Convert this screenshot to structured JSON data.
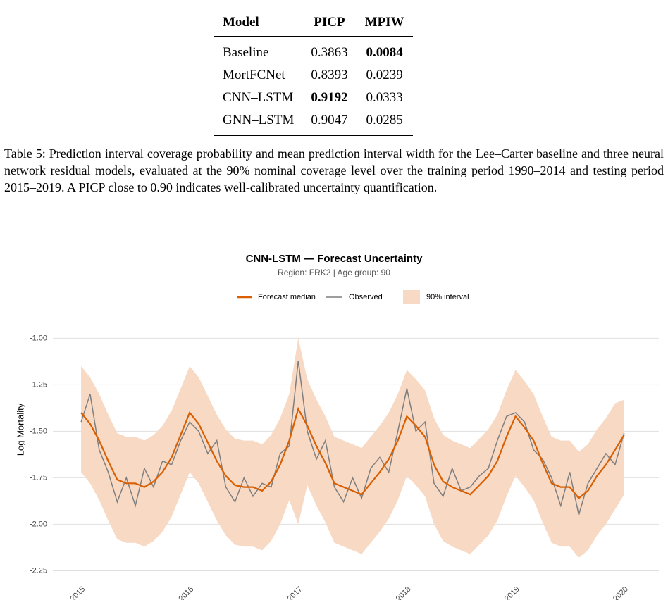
{
  "table": {
    "header": [
      "Model",
      "PICP",
      "MPIW"
    ],
    "rows": [
      [
        "Baseline",
        "0.3863",
        "0.0084"
      ],
      [
        "MortFCNet",
        "0.8393",
        "0.0239"
      ],
      [
        "CNN–LSTM",
        "0.9192",
        "0.0333"
      ],
      [
        "GNN–LSTM",
        "0.9047",
        "0.0285"
      ]
    ],
    "bold": [
      [
        0,
        2
      ],
      [
        2,
        1
      ]
    ]
  },
  "caption": "Table 5: Prediction interval coverage probability and mean prediction interval width for the Lee–Carter baseline and three neural network residual models, evaluated at the 90% nominal coverage level over the training period 1990–2014 and testing period 2015–2019. A PICP close to 0.90 indicates well-calibrated uncertainty quantification.",
  "chart_data": {
    "type": "line",
    "title": "CNN-LSTM — Forecast Uncertainty",
    "subtitle": "Region: FRK2 | Age group: 90",
    "y_label": "Log Mortality",
    "grid": "y",
    "xlim": [
      2014.74,
      2020.32
    ],
    "xticks": [
      2015,
      2016,
      2017,
      2018,
      2019,
      2020
    ],
    "ylim": [
      -2.29,
      -0.9
    ],
    "yticks": [
      {
        "value": -2.25,
        "label": "-2.25"
      },
      {
        "value": -2,
        "label": "-2.00"
      },
      {
        "value": -1.75,
        "label": "-1.75"
      },
      {
        "value": -1.5,
        "label": "-1.50"
      },
      {
        "value": -1.25,
        "label": "-1.25"
      },
      {
        "value": -1,
        "label": "-1.00"
      }
    ],
    "x": [
      2015,
      2015.083,
      2015.167,
      2015.25,
      2015.333,
      2015.417,
      2015.5,
      2015.583,
      2015.667,
      2015.75,
      2015.833,
      2015.917,
      2016,
      2016.083,
      2016.167,
      2016.25,
      2016.333,
      2016.417,
      2016.5,
      2016.583,
      2016.667,
      2016.75,
      2016.833,
      2016.917,
      2017,
      2017.083,
      2017.167,
      2017.25,
      2017.333,
      2017.417,
      2017.5,
      2017.583,
      2017.667,
      2017.75,
      2017.833,
      2017.917,
      2018,
      2018.083,
      2018.167,
      2018.25,
      2018.333,
      2018.417,
      2018.5,
      2018.583,
      2018.667,
      2018.75,
      2018.833,
      2018.917,
      2019,
      2019.083,
      2019.167,
      2019.25,
      2019.333,
      2019.417,
      2019.5,
      2019.583,
      2019.667,
      2019.75,
      2019.833,
      2019.917,
      2020
    ],
    "interval": {
      "name": "90% interval",
      "color": "#f7d9c4",
      "upper": [
        -1.15,
        -1.21,
        -1.3,
        -1.41,
        -1.51,
        -1.53,
        -1.53,
        -1.55,
        -1.52,
        -1.47,
        -1.39,
        -1.27,
        -1.15,
        -1.21,
        -1.31,
        -1.41,
        -1.49,
        -1.54,
        -1.55,
        -1.55,
        -1.57,
        -1.52,
        -1.43,
        -1.3,
        -1.0,
        -1.22,
        -1.33,
        -1.42,
        -1.53,
        -1.55,
        -1.57,
        -1.59,
        -1.53,
        -1.47,
        -1.4,
        -1.3,
        -1.17,
        -1.22,
        -1.28,
        -1.43,
        -1.52,
        -1.55,
        -1.57,
        -1.59,
        -1.54,
        -1.49,
        -1.41,
        -1.28,
        -1.17,
        -1.23,
        -1.3,
        -1.42,
        -1.53,
        -1.55,
        -1.55,
        -1.61,
        -1.57,
        -1.49,
        -1.43,
        -1.35,
        -1.33
      ],
      "lower": [
        -1.72,
        -1.78,
        -1.87,
        -1.98,
        -2.08,
        -2.1,
        -2.1,
        -2.12,
        -2.09,
        -2.04,
        -1.96,
        -1.84,
        -1.72,
        -1.78,
        -1.88,
        -1.98,
        -2.06,
        -2.11,
        -2.12,
        -2.12,
        -2.14,
        -2.09,
        -2.0,
        -1.87,
        -2.0,
        -1.79,
        -1.9,
        -1.99,
        -2.1,
        -2.12,
        -2.14,
        -2.16,
        -2.1,
        -2.04,
        -1.97,
        -1.87,
        -1.74,
        -1.79,
        -1.85,
        -2.0,
        -2.09,
        -2.12,
        -2.14,
        -2.16,
        -2.11,
        -2.06,
        -1.98,
        -1.85,
        -1.74,
        -1.8,
        -1.87,
        -1.99,
        -2.1,
        -2.12,
        -2.12,
        -2.18,
        -2.14,
        -2.06,
        -2.0,
        -1.92,
        -1.84
      ]
    },
    "series": [
      {
        "name": "Forecast median",
        "color": "#d95f02",
        "values": [
          -1.4,
          -1.46,
          -1.55,
          -1.66,
          -1.76,
          -1.78,
          -1.78,
          -1.8,
          -1.77,
          -1.72,
          -1.64,
          -1.52,
          -1.4,
          -1.46,
          -1.56,
          -1.66,
          -1.74,
          -1.79,
          -1.8,
          -1.8,
          -1.82,
          -1.77,
          -1.68,
          -1.55,
          -1.38,
          -1.47,
          -1.58,
          -1.67,
          -1.78,
          -1.8,
          -1.82,
          -1.84,
          -1.78,
          -1.72,
          -1.65,
          -1.55,
          -1.42,
          -1.47,
          -1.53,
          -1.68,
          -1.77,
          -1.8,
          -1.82,
          -1.84,
          -1.79,
          -1.74,
          -1.66,
          -1.53,
          -1.42,
          -1.48,
          -1.55,
          -1.67,
          -1.78,
          -1.8,
          -1.8,
          -1.86,
          -1.82,
          -1.74,
          -1.68,
          -1.6,
          -1.52
        ]
      },
      {
        "name": "Observed",
        "color": "#7f7f7f",
        "values": [
          -1.45,
          -1.3,
          -1.6,
          -1.72,
          -1.88,
          -1.75,
          -1.9,
          -1.7,
          -1.8,
          -1.66,
          -1.68,
          -1.55,
          -1.45,
          -1.5,
          -1.62,
          -1.55,
          -1.8,
          -1.88,
          -1.75,
          -1.85,
          -1.78,
          -1.8,
          -1.62,
          -1.58,
          -1.12,
          -1.5,
          -1.65,
          -1.55,
          -1.8,
          -1.88,
          -1.75,
          -1.86,
          -1.7,
          -1.64,
          -1.72,
          -1.5,
          -1.27,
          -1.5,
          -1.45,
          -1.78,
          -1.85,
          -1.7,
          -1.82,
          -1.8,
          -1.74,
          -1.7,
          -1.55,
          -1.42,
          -1.4,
          -1.45,
          -1.6,
          -1.65,
          -1.75,
          -1.9,
          -1.72,
          -1.95,
          -1.78,
          -1.7,
          -1.62,
          -1.68,
          -1.51
        ]
      }
    ]
  }
}
